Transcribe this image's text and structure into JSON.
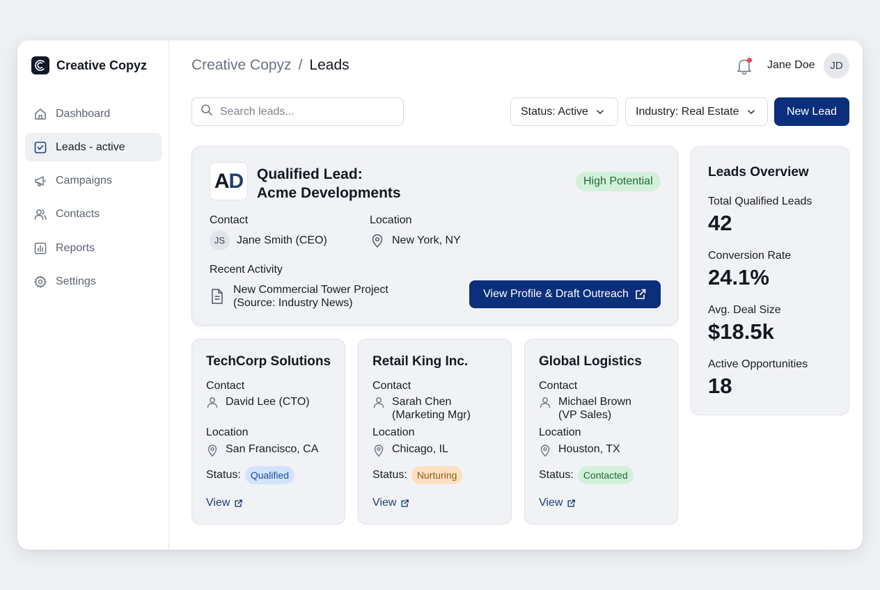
{
  "brand": {
    "name": "Creative Copyz"
  },
  "sidebar": {
    "items": [
      {
        "label": "Dashboard",
        "icon": "home-icon"
      },
      {
        "label": "Leads - active",
        "icon": "check-square-icon",
        "active": true
      },
      {
        "label": "Campaigns",
        "icon": "megaphone-icon"
      },
      {
        "label": "Contacts",
        "icon": "users-icon"
      },
      {
        "label": "Reports",
        "icon": "bar-chart-icon"
      },
      {
        "label": "Settings",
        "icon": "gear-icon"
      }
    ]
  },
  "header": {
    "breadcrumb_root": "Creative Copyz",
    "breadcrumb_separator": "/",
    "breadcrumb_current": "Leads",
    "user_name": "Jane Doe",
    "user_initials": "JD"
  },
  "toolbar": {
    "search_placeholder": "Search leads...",
    "status_filter": "Status: Active",
    "industry_filter": "Industry: Real Estate",
    "new_lead_label": "New Lead"
  },
  "featured": {
    "logo_a": "A",
    "logo_d": "D",
    "title_line1": "Qualified Lead:",
    "title_line2": "Acme Developments",
    "badge": "High Potential",
    "contact_label": "Contact",
    "contact_initials": "JS",
    "contact_name": "Jane Smith (CEO)",
    "location_label": "Location",
    "location": "New York, NY",
    "activity_label": "Recent Activity",
    "activity_line1": "New Commercial Tower Project",
    "activity_line2": "(Source: Industry News)",
    "action_label": "View Profile & Draft Outreach"
  },
  "leads": [
    {
      "name": "TechCorp Solutions",
      "contact_label": "Contact",
      "contact_line1": "David Lee (CTO)",
      "contact_line2": "",
      "location_label": "Location",
      "location": "San Francisco, CA",
      "status_label": "Status:",
      "status": "Qualified",
      "view_label": "View"
    },
    {
      "name": "Retail King Inc.",
      "contact_label": "Contact",
      "contact_line1": "Sarah Chen",
      "contact_line2": "(Marketing Mgr)",
      "location_label": "Location",
      "location": "Chicago, IL",
      "status_label": "Status:",
      "status": "Nurturing",
      "view_label": "View"
    },
    {
      "name": "Global Logistics",
      "contact_label": "Contact",
      "contact_line1": "Michael Brown",
      "contact_line2": "(VP Sales)",
      "location_label": "Location",
      "location": "Houston, TX",
      "status_label": "Status:",
      "status": "Contacted",
      "view_label": "View"
    }
  ],
  "overview": {
    "title": "Leads Overview",
    "stats": [
      {
        "label": "Total Qualified Leads",
        "value": "42"
      },
      {
        "label": "Conversion Rate",
        "value": "24.1%"
      },
      {
        "label": "Avg. Deal Size",
        "value": "$18.5k"
      },
      {
        "label": "Active Opportunities",
        "value": "18"
      }
    ]
  },
  "colors": {
    "primary": "#0b2f7a",
    "qualified_bg": "#d3e3fb",
    "nurturing_bg": "#fbe1c2",
    "contacted_bg": "#d3f0db",
    "notification_dot": "#ef4444"
  }
}
